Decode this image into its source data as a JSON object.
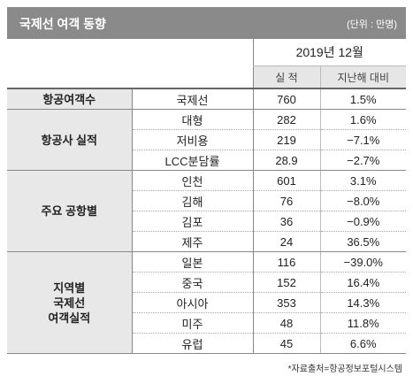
{
  "header": {
    "title": "국제선 여객 동향",
    "unit": "(단위 : 만명)"
  },
  "table": {
    "period": "2019년 12월",
    "col_count": "실 적",
    "col_change": "지난해 대비",
    "groups": [
      {
        "label": "항공여객수",
        "rows": [
          {
            "item": "국제선",
            "value": "760",
            "change": "1.5%"
          }
        ]
      },
      {
        "label": "항공사 실적",
        "rows": [
          {
            "item": "대형",
            "value": "282",
            "change": "1.6%"
          },
          {
            "item": "저비용",
            "value": "219",
            "change": "−7.1%"
          },
          {
            "item": "LCC분담률",
            "value": "28.9",
            "change": "−2.7%"
          }
        ]
      },
      {
        "label": "주요 공항별",
        "rows": [
          {
            "item": "인천",
            "value": "601",
            "change": "3.1%"
          },
          {
            "item": "김해",
            "value": "76",
            "change": "−8.0%"
          },
          {
            "item": "김포",
            "value": "36",
            "change": "−0.9%"
          },
          {
            "item": "제주",
            "value": "24",
            "change": "36.5%"
          }
        ]
      },
      {
        "label_lines": [
          "지역별",
          "국제선",
          "여객실적"
        ],
        "rows": [
          {
            "item": "일본",
            "value": "116",
            "change": "−39.0%"
          },
          {
            "item": "중국",
            "value": "152",
            "change": "16.4%"
          },
          {
            "item": "아시아",
            "value": "353",
            "change": "14.3%"
          },
          {
            "item": "미주",
            "value": "48",
            "change": "11.8%"
          },
          {
            "item": "유럽",
            "value": "45",
            "change": "6.6%"
          }
        ]
      }
    ]
  },
  "source": "*자료출처=항공정보포털시스템"
}
